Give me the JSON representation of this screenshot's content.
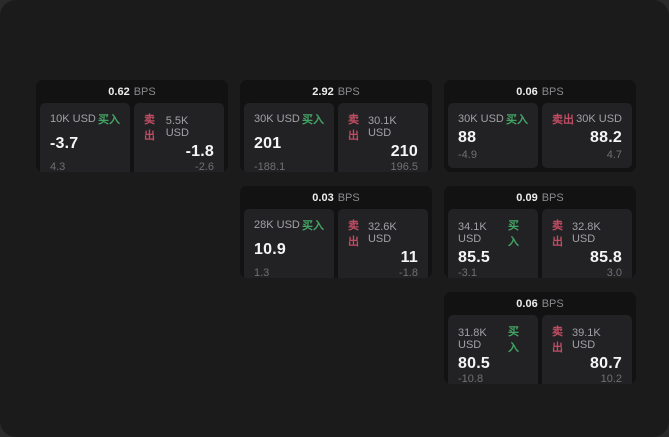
{
  "labels": {
    "bps_unit": "BPS",
    "buy": "买入",
    "sell": "卖出"
  },
  "colors": {
    "window_bg": "#1b1b1c",
    "card_bg": "#121213",
    "panel_bg": "#222225",
    "buy_green": "#43a564",
    "sell_red": "#bf4d63",
    "price_white": "#f5f5f5",
    "muted_gray": "#707073"
  },
  "cards": [
    {
      "bps": "0.62",
      "buy": {
        "size": "10K USD",
        "price": "-3.7",
        "delta": "4.3"
      },
      "sell": {
        "size": "5.5K USD",
        "price": "-1.8",
        "delta": "-2.6"
      }
    },
    {
      "bps": "2.92",
      "buy": {
        "size": "30K USD",
        "price": "201",
        "delta": "-188.1"
      },
      "sell": {
        "size": "30.1K USD",
        "price": "210",
        "delta": "196.5"
      }
    },
    {
      "bps": "0.06",
      "buy": {
        "size": "30K USD",
        "price": "88",
        "delta": "-4.9"
      },
      "sell": {
        "size": "30K USD",
        "price": "88.2",
        "delta": "4.7"
      }
    },
    {
      "bps": "0.03",
      "buy": {
        "size": "28K USD",
        "price": "10.9",
        "delta": "1.3"
      },
      "sell": {
        "size": "32.6K USD",
        "price": "11",
        "delta": "-1.8"
      }
    },
    {
      "bps": "0.09",
      "buy": {
        "size": "34.1K USD",
        "price": "85.5",
        "delta": "-3.1"
      },
      "sell": {
        "size": "32.8K USD",
        "price": "85.8",
        "delta": "3.0"
      }
    },
    {
      "bps": "0.06",
      "buy": {
        "size": "31.8K USD",
        "price": "80.5",
        "delta": "-10.8"
      },
      "sell": {
        "size": "39.1K USD",
        "price": "80.7",
        "delta": "10.2"
      }
    }
  ]
}
